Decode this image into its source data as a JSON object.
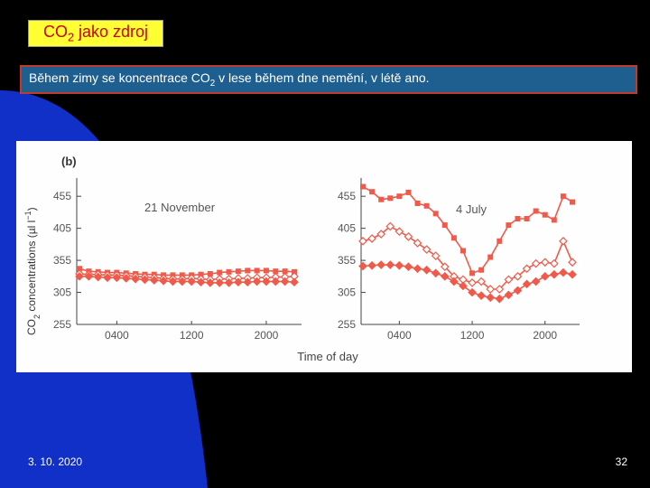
{
  "slide": {
    "title_main": "CO",
    "title_sub": "2",
    "title_rest": " jako zdroj",
    "subtitle_pre": "Během zimy se koncentrace CO",
    "subtitle_sub": "2",
    "subtitle_post": " v lese během dne nemění, v létě ano.",
    "date": "3. 10. 2020",
    "page_number": "32"
  },
  "colors": {
    "background": "#000000",
    "blue_shape": "#1030c8",
    "title_bg": "#ffff33",
    "title_text": "#cc0000",
    "subtitle_bg": "#1f5f90",
    "subtitle_border": "#c0392b",
    "series_color": "#f05a4a"
  },
  "chart_data": [
    {
      "type": "line",
      "panel_label": "(b)",
      "annotation": "21 November",
      "ylabel_pre": "CO",
      "ylabel_sub": "2",
      "ylabel_post": " concentrations (µl l",
      "ylabel_sup": "−1",
      "ylabel_end": ")",
      "xlabel": "",
      "y_ticks": [
        "455",
        "405",
        "355",
        "305",
        "255"
      ],
      "x_ticks": [
        "0400",
        "1200",
        "2000"
      ],
      "ylim": [
        255,
        475
      ],
      "x": [
        0,
        1,
        2,
        3,
        4,
        5,
        6,
        7,
        8,
        9,
        10,
        11,
        12,
        13,
        14,
        15,
        16,
        17,
        18,
        19,
        20,
        21,
        22,
        23
      ],
      "series": [
        {
          "marker": "square-filled",
          "values": [
            342,
            338,
            337,
            336,
            336,
            335,
            334,
            333,
            333,
            332,
            332,
            332,
            332,
            333,
            334,
            336,
            337,
            338,
            339,
            339,
            339,
            338,
            338,
            337
          ]
        },
        {
          "marker": "diamond-open",
          "values": [
            334,
            333,
            333,
            332,
            332,
            331,
            330,
            329,
            328,
            327,
            326,
            326,
            327,
            326,
            325,
            326,
            326,
            327,
            327,
            328,
            328,
            329,
            329,
            330
          ]
        },
        {
          "marker": "diamond-filled",
          "values": [
            330,
            330,
            329,
            328,
            328,
            327,
            326,
            325,
            324,
            323,
            322,
            322,
            322,
            321,
            320,
            320,
            320,
            321,
            321,
            322,
            322,
            322,
            322,
            321
          ]
        }
      ]
    },
    {
      "type": "line",
      "annotation": "4 July",
      "xlabel": "Time of day",
      "y_ticks": [
        "455",
        "405",
        "355",
        "305",
        "255"
      ],
      "x_ticks": [
        "0400",
        "1200",
        "2000"
      ],
      "ylim": [
        255,
        475
      ],
      "x": [
        0,
        1,
        2,
        3,
        4,
        5,
        6,
        7,
        8,
        9,
        10,
        11,
        12,
        13,
        14,
        15,
        16,
        17,
        18,
        19,
        20,
        21,
        22,
        23
      ],
      "series": [
        {
          "marker": "square-filled",
          "values": [
            470,
            462,
            450,
            452,
            455,
            461,
            444,
            440,
            428,
            410,
            390,
            370,
            335,
            340,
            360,
            385,
            410,
            420,
            420,
            432,
            426,
            418,
            455,
            446
          ]
        },
        {
          "marker": "diamond-open",
          "values": [
            385,
            389,
            396,
            408,
            400,
            392,
            382,
            372,
            362,
            345,
            330,
            325,
            320,
            322,
            310,
            310,
            325,
            330,
            342,
            350,
            352,
            350,
            385,
            352
          ]
        },
        {
          "marker": "diamond-filled",
          "values": [
            346,
            347,
            348,
            348,
            347,
            345,
            342,
            340,
            335,
            330,
            322,
            315,
            305,
            300,
            297,
            295,
            301,
            308,
            318,
            322,
            330,
            333,
            336,
            333
          ]
        }
      ]
    }
  ]
}
